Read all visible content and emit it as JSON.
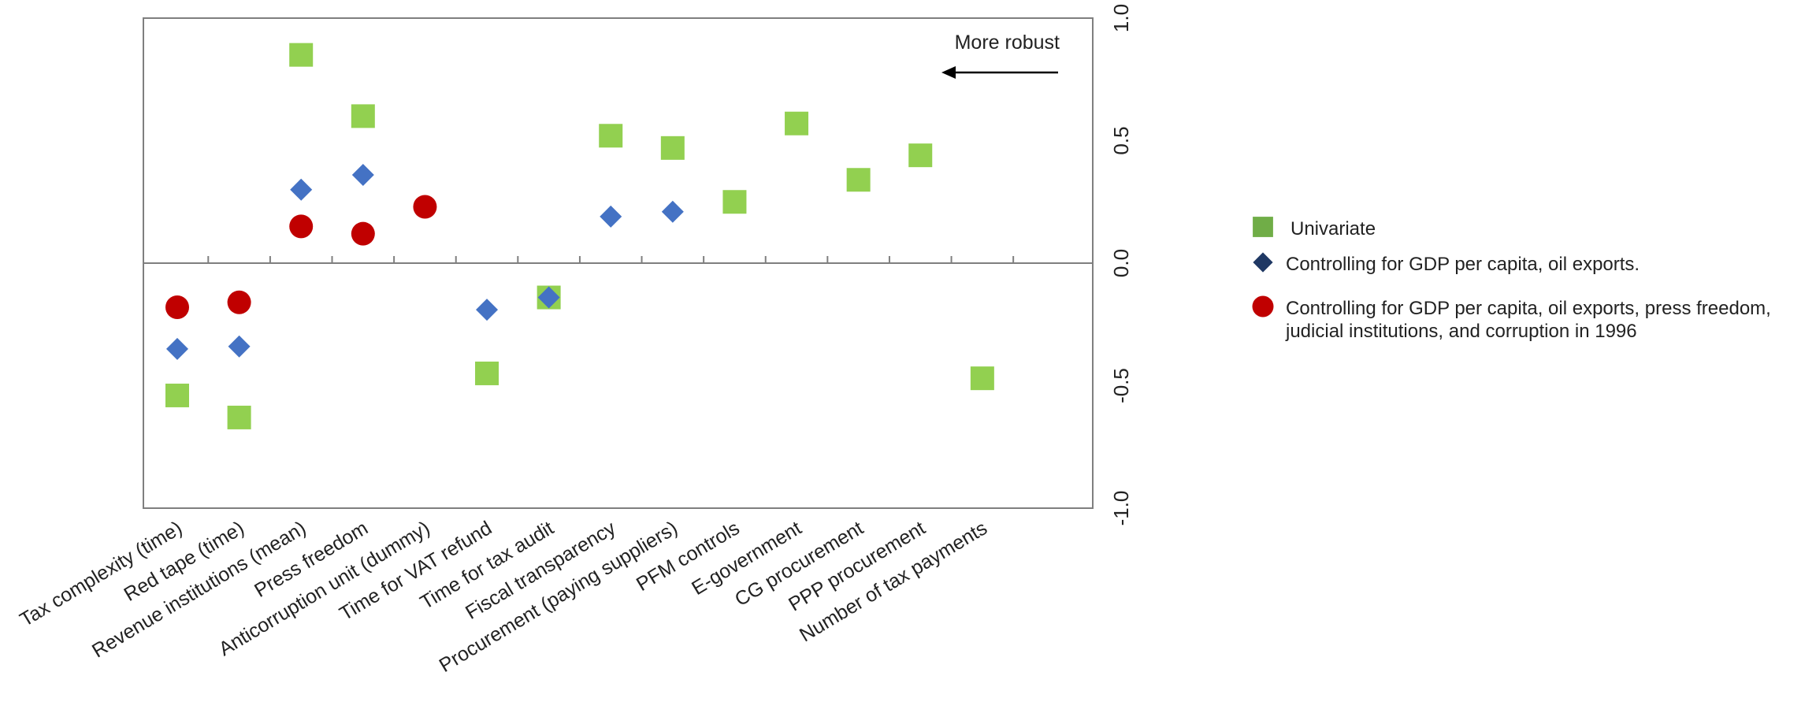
{
  "chart_data": {
    "type": "scatter",
    "title": "",
    "xlabel": "",
    "ylabel": "",
    "ylim": [
      -1.0,
      1.0
    ],
    "yticks": [
      1.0,
      0.5,
      0.0,
      -0.5,
      -1.0
    ],
    "ytick_labels": [
      "1.0",
      "0.5",
      "0.0",
      "-0.5",
      "-1.0"
    ],
    "grid": false,
    "legend_position": "right",
    "categories": [
      "Tax complexity (time)",
      "Red tape (time)",
      "Revenue institutions (mean)",
      "Press freedom",
      "Anticorruption unit (dummy)",
      "Time for VAT refund",
      "Time for tax audit",
      "Fiscal transparency",
      "Procurement (paying suppliers)",
      "PFM controls",
      "E-government",
      "CG procurement",
      "PPP procurement",
      "Number of tax payments"
    ],
    "series": [
      {
        "name": "Univariate",
        "marker": "square",
        "color": "#92D050",
        "legend_color": "#70AD47",
        "values": [
          -0.54,
          -0.63,
          0.85,
          0.6,
          null,
          -0.45,
          -0.14,
          0.52,
          0.47,
          0.25,
          0.57,
          0.34,
          0.44,
          -0.47
        ]
      },
      {
        "name": "Controlling for GDP per capita, oil exports.",
        "marker": "diamond",
        "color": "#4472C4",
        "legend_color": "#1F3864",
        "values": [
          -0.35,
          -0.34,
          0.3,
          0.36,
          null,
          -0.19,
          -0.14,
          0.19,
          0.21,
          null,
          null,
          null,
          null,
          null
        ]
      },
      {
        "name": "Controlling for GDP per capita, oil exports, press freedom, judicial institutions, and corruption in 1996",
        "name_lines": [
          "Controlling for GDP per capita, oil exports, press freedom,",
          "judicial institutions, and corruption in 1996"
        ],
        "marker": "circle",
        "color": "#C00000",
        "legend_color": "#C00000",
        "values": [
          -0.18,
          -0.16,
          0.15,
          0.12,
          0.23,
          null,
          null,
          null,
          null,
          null,
          null,
          null,
          null,
          null
        ]
      }
    ],
    "annotation": {
      "text": "More robust",
      "arrow_direction": "left"
    }
  }
}
